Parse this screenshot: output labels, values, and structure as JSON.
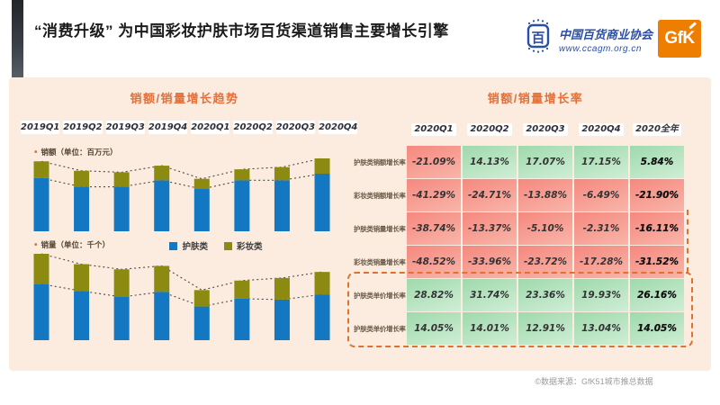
{
  "header": {
    "title": "“消费升级” 为中国彩妆护肤市场百货渠道销售主要增长引擎",
    "association_name": "中国百货商业协会",
    "association_url": "www.ccagm.org.cn",
    "association_seal_glyph": "百",
    "gfk_logo_text": "GfK"
  },
  "left_section": {
    "title": "销额/销量增长趋势"
  },
  "right_section": {
    "title": "销额/销量增长率"
  },
  "footer": {
    "source": "©数据来源：GfK51城市推总数据"
  },
  "colors": {
    "skincare_blue": "#1377c2",
    "makeup_olive": "#8c8a10",
    "panel_peach": "#fbecdf",
    "title_orange": "#e2703a",
    "cell_red": "#f5887f",
    "cell_green": "#9fd9ab",
    "gfk_orange": "#ee7e01",
    "association_blue": "#2b4fa5"
  },
  "chart_data": [
    {
      "type": "bar",
      "stacked": true,
      "title": "销额（单位：百万元）",
      "categories": [
        "2019Q1",
        "2019Q2",
        "2019Q3",
        "2019Q4",
        "2020Q1",
        "2020Q2",
        "2020Q3",
        "2020Q4"
      ],
      "series": [
        {
          "name": "护肤类",
          "color": "#1377c2",
          "values": [
            73,
            61,
            61,
            70,
            58,
            70,
            70,
            79
          ]
        },
        {
          "name": "彩妆类",
          "color": "#8c8a10",
          "values": [
            23,
            22,
            20,
            20,
            14,
            15,
            18,
            21
          ]
        }
      ],
      "ylabel": "relative height, % of tallest stack (no numeric axis shown)",
      "ylim": [
        0,
        100
      ],
      "grid": false,
      "annotations": "dotted connector lines join stack tops and skincare-segment tops across quarters",
      "legend_position": "below-chart-center"
    },
    {
      "type": "bar",
      "stacked": true,
      "title": "销量（单位：千个）",
      "categories": [
        "2019Q1",
        "2019Q2",
        "2019Q3",
        "2019Q4",
        "2020Q1",
        "2020Q2",
        "2020Q3",
        "2020Q4"
      ],
      "series": [
        {
          "name": "护肤类",
          "color": "#1377c2",
          "values": [
            65,
            57,
            50,
            56,
            39,
            48,
            47,
            53
          ]
        },
        {
          "name": "彩妆类",
          "color": "#8c8a10",
          "values": [
            35,
            31,
            32,
            30,
            19,
            21,
            25,
            26
          ]
        }
      ],
      "ylabel": "relative height, % of tallest stack (no numeric axis shown)",
      "ylim": [
        0,
        100
      ],
      "grid": false,
      "annotations": "dotted connector lines join stack tops and skincare-segment tops across quarters"
    },
    {
      "type": "table",
      "title": "销额/销量增长率",
      "columns": [
        "2020Q1",
        "2020Q2",
        "2020Q3",
        "2020Q4",
        "2020全年"
      ],
      "rows": [
        {
          "label": "护肤类销额增长率",
          "values": [
            "-21.09%",
            "14.13%",
            "17.07%",
            "17.15%",
            "5.84%"
          ]
        },
        {
          "label": "彩妆类销额增长率",
          "values": [
            "-41.29%",
            "-24.71%",
            "-13.88%",
            "-6.49%",
            "-21.90%"
          ]
        },
        {
          "label": "护肤类销量增长率",
          "values": [
            "-38.74%",
            "-13.37%",
            "-5.10%",
            "-2.31%",
            "-16.11%"
          ]
        },
        {
          "label": "彩妆类销量增长率",
          "values": [
            "-48.52%",
            "-33.96%",
            "-23.72%",
            "-17.28%",
            "-31.52%"
          ]
        },
        {
          "label": "护肤类单价增长率",
          "values": [
            "28.82%",
            "31.74%",
            "23.36%",
            "19.93%",
            "26.16%"
          ]
        },
        {
          "label": "护肤类单价增长率",
          "values": [
            "14.05%",
            "14.01%",
            "12.91%",
            "13.04%",
            "14.05%"
          ]
        }
      ],
      "cell_coloring": "negative values red gradient, positive values green gradient; last column bold",
      "highlight": "orange dashed box around the two unit-price rows"
    }
  ]
}
